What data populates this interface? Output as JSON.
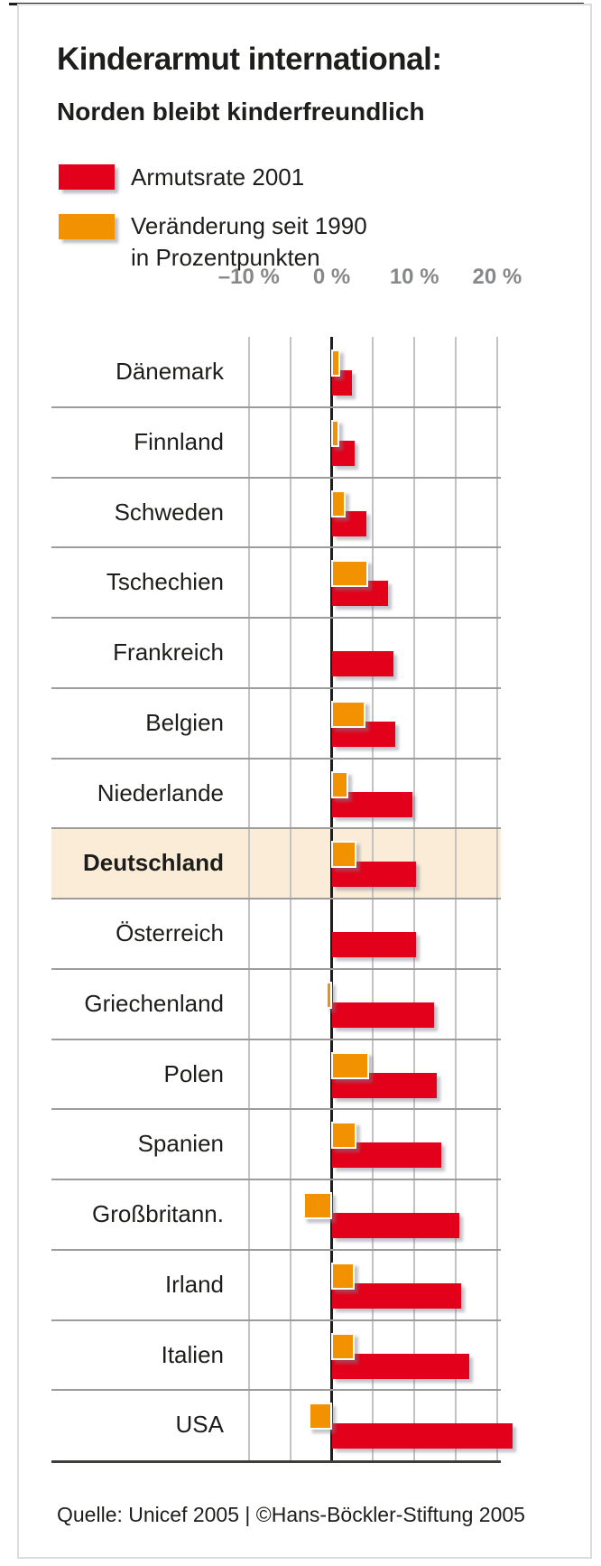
{
  "header": {
    "title": "Kinderarmut international:",
    "subtitle": "Norden bleibt kinderfreundlich"
  },
  "legend": {
    "items": [
      {
        "label": "Armutsrate 2001",
        "color": "#e2001a"
      },
      {
        "label_line1": "Veränderung seit 1990",
        "label_line2": "in Prozentpunkten",
        "color": "#f39200"
      }
    ]
  },
  "footer": {
    "source": "Quelle: Unicef 2005 | ©Hans-Böckler-Stiftung 2005"
  },
  "colors": {
    "poverty_rate_bar": "#e2001a",
    "change_bar": "#f39200",
    "highlight_band": "#faecd6",
    "gridline": "#c3c3c3",
    "row_separator": "#9c9c9c",
    "axis_label": "#87888a",
    "text": "#1d1d1b"
  },
  "chart_data": {
    "type": "bar",
    "orientation": "horizontal",
    "title": "Kinderarmut international: Norden bleibt kinderfreundlich",
    "unit": "%",
    "categories": [
      "Dänemark",
      "Finnland",
      "Schweden",
      "Tschechien",
      "Frankreich",
      "Belgien",
      "Niederlande",
      "Deutschland",
      "Österreich",
      "Griechenland",
      "Polen",
      "Spanien",
      "Großbritann.",
      "Irland",
      "Italien",
      "USA"
    ],
    "series": [
      {
        "name": "Armutsrate 2001",
        "color": "#e2001a",
        "values": [
          2.4,
          2.8,
          4.2,
          6.8,
          7.5,
          7.7,
          9.8,
          10.2,
          10.2,
          12.4,
          12.7,
          13.3,
          15.4,
          15.7,
          16.6,
          21.9
        ]
      },
      {
        "name": "Veränderung seit 1990 in Prozentpunkten",
        "color": "#f39200",
        "values": [
          0.7,
          0.6,
          1.4,
          4.1,
          null,
          3.8,
          1.7,
          2.7,
          null,
          -0.4,
          4.2,
          2.7,
          -3.1,
          2.5,
          2.5,
          -2.4
        ]
      }
    ],
    "tick_labels": [
      "–10 %",
      "0 %",
      "10 %",
      "20 %"
    ],
    "tick_values": [
      -10,
      0,
      10,
      20
    ],
    "gridline_step": 5,
    "xlim": [
      -12.5,
      20.5
    ],
    "legend_position": "top-left",
    "grid": true,
    "highlight_category": "Deutschland"
  }
}
